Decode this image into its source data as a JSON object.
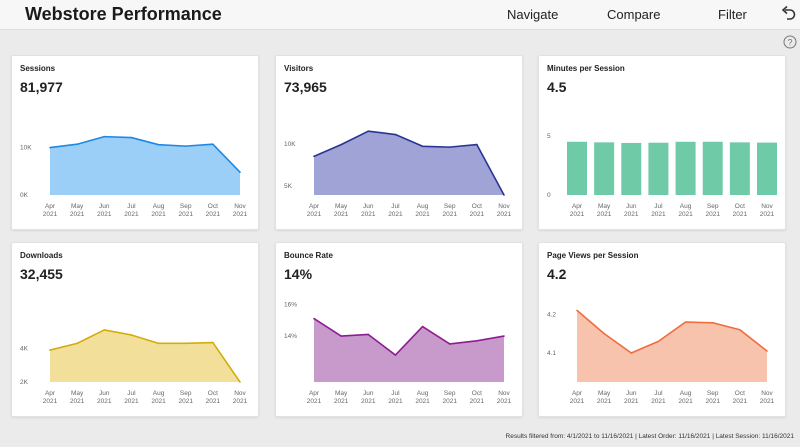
{
  "app": {
    "title": "Webstore Performance"
  },
  "nav": {
    "navigate": "Navigate",
    "compare": "Compare",
    "filter": "Filter"
  },
  "icons": {
    "undo": "undo-icon",
    "help": "help-icon"
  },
  "months": [
    "Apr\n2021",
    "May\n2021",
    "Jun\n2021",
    "Jul\n2021",
    "Aug\n2021",
    "Sep\n2021",
    "Oct\n2021",
    "Nov\n2021"
  ],
  "cards": [
    {
      "id": "sessions",
      "title": "Sessions",
      "value": "81,977",
      "chart_data": {
        "type": "area",
        "stroke": "#1e88e5",
        "fill": "#9ccff7",
        "x": [
          "Apr 2021",
          "May 2021",
          "Jun 2021",
          "Jul 2021",
          "Aug 2021",
          "Sep 2021",
          "Oct 2021",
          "Nov 2021"
        ],
        "values": [
          10000,
          10700,
          12300,
          12100,
          10600,
          10300,
          10700,
          4800
        ],
        "ylim": [
          0,
          17700
        ],
        "yticks": [
          {
            "v": 0,
            "label": "0K"
          },
          {
            "v": 10000,
            "label": "10K"
          }
        ]
      }
    },
    {
      "id": "visitors",
      "title": "Visitors",
      "value": "73,965",
      "chart_data": {
        "type": "area",
        "stroke": "#283593",
        "fill": "#9fa3d6",
        "x": [
          "Apr 2021",
          "May 2021",
          "Jun 2021",
          "Jul 2021",
          "Aug 2021",
          "Sep 2021",
          "Oct 2021",
          "Nov 2021"
        ],
        "values": [
          8500,
          9900,
          11500,
          11100,
          9700,
          9600,
          9900,
          3900
        ],
        "ylim": [
          3900,
          13900
        ],
        "yticks": [
          {
            "v": 5000,
            "label": "5K"
          },
          {
            "v": 10000,
            "label": "10K"
          }
        ]
      }
    },
    {
      "id": "minutes",
      "title": "Minutes per Session",
      "value": "4.5",
      "chart_data": {
        "type": "bar",
        "stroke": "#4ebc96",
        "fill": "#6fcaa8",
        "x": [
          "Apr 2021",
          "May 2021",
          "Jun 2021",
          "Jul 2021",
          "Aug 2021",
          "Sep 2021",
          "Oct 2021",
          "Nov 2021"
        ],
        "values": [
          4.5,
          4.45,
          4.4,
          4.42,
          4.5,
          4.5,
          4.45,
          4.43
        ],
        "ylim": [
          0,
          7.1
        ],
        "yticks": [
          {
            "v": 0,
            "label": "0"
          },
          {
            "v": 5,
            "label": "5"
          }
        ]
      }
    },
    {
      "id": "downloads",
      "title": "Downloads",
      "value": "32,455",
      "chart_data": {
        "type": "area",
        "stroke": "#d4ac0d",
        "fill": "#f2e09a",
        "x": [
          "Apr 2021",
          "May 2021",
          "Jun 2021",
          "Jul 2021",
          "Aug 2021",
          "Sep 2021",
          "Oct 2021",
          "Nov 2021"
        ],
        "values": [
          3900,
          4300,
          5100,
          4800,
          4300,
          4300,
          4350,
          2000
        ],
        "ylim": [
          2000,
          7000
        ],
        "yticks": [
          {
            "v": 2000,
            "label": "2K"
          },
          {
            "v": 4000,
            "label": "4K"
          }
        ]
      }
    },
    {
      "id": "bounce",
      "title": "Bounce Rate",
      "value": "14%",
      "chart_data": {
        "type": "area",
        "stroke": "#8e1d8f",
        "fill": "#c89acc",
        "x": [
          "Apr 2021",
          "May 2021",
          "Jun 2021",
          "Jul 2021",
          "Aug 2021",
          "Sep 2021",
          "Oct 2021",
          "Nov 2021"
        ],
        "values": [
          15.1,
          14.0,
          14.1,
          12.8,
          14.6,
          13.5,
          13.7,
          14.0
        ],
        "ylim": [
          11.1,
          16.4
        ],
        "yticks": [
          {
            "v": 14,
            "label": "14%"
          },
          {
            "v": 16,
            "label": "16%"
          }
        ]
      }
    },
    {
      "id": "pageviews",
      "title": "Page Views per Session",
      "value": "4.2",
      "chart_data": {
        "type": "area",
        "stroke": "#ef6c3c",
        "fill": "#f8c3ad",
        "x": [
          "Apr 2021",
          "May 2021",
          "Jun 2021",
          "Jul 2021",
          "Aug 2021",
          "Sep 2021",
          "Oct 2021",
          "Nov 2021"
        ],
        "values": [
          4.21,
          4.15,
          4.1,
          4.13,
          4.18,
          4.178,
          4.16,
          4.105
        ],
        "ylim": [
          4.025,
          4.242
        ],
        "yticks": [
          {
            "v": 4.1,
            "label": "4.1"
          },
          {
            "v": 4.2,
            "label": "4.2"
          }
        ]
      }
    }
  ],
  "footer": {
    "text": "Results filtered from: 4/1/2021 to 11/16/2021  |  Latest Order: 11/16/2021  |  Latest Session: 11/16/2021"
  }
}
